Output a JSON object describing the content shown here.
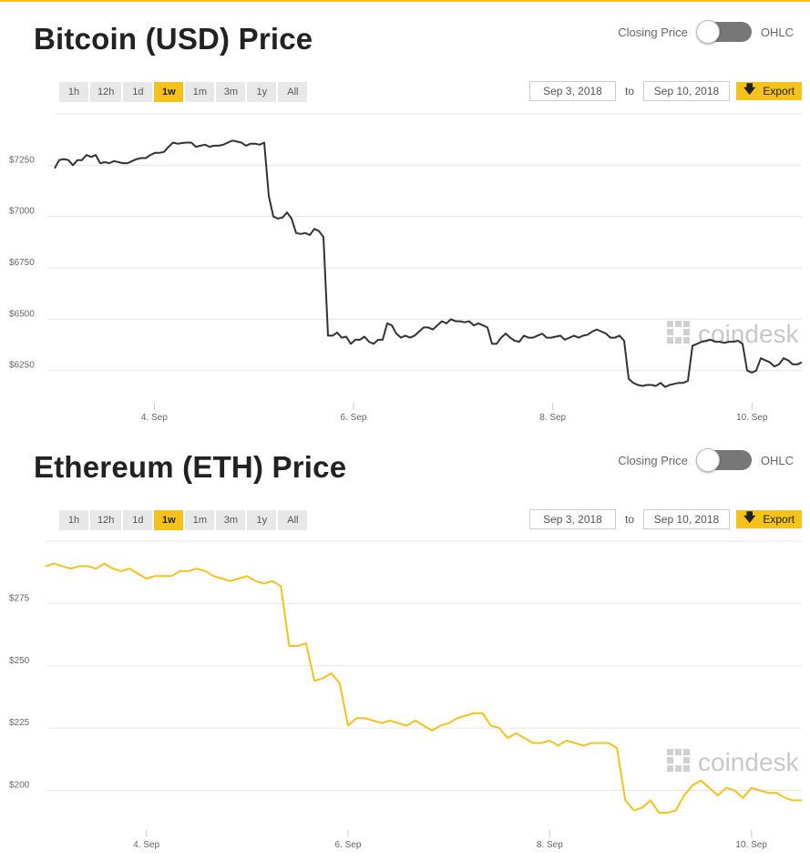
{
  "controls": {
    "closing_label": "Closing Price",
    "ohlc_label": "OHLC",
    "ranges": [
      "1h",
      "12h",
      "1d",
      "1w",
      "1m",
      "3m",
      "1y",
      "All"
    ],
    "active_range": "1w",
    "date_from": "Sep 3, 2018",
    "to_label": "to",
    "date_to": "Sep 10, 2018",
    "export_label": "Export"
  },
  "watermark": "coindesk",
  "colors": {
    "accent": "#f5c11b",
    "btc_line": "#333333",
    "eth_line": "#f5c11b",
    "grid": "#e6e6e6"
  },
  "chart_data": [
    {
      "type": "line",
      "title": "Bitcoin (USD) Price",
      "x_ticks": [
        "4. Sep",
        "6. Sep",
        "8. Sep",
        "10. Sep"
      ],
      "y_ticks": [
        "$6250",
        "$6500",
        "$6750",
        "$7000",
        "$7250"
      ],
      "y_tick_values": [
        6250,
        6500,
        6750,
        7000,
        7250
      ],
      "x_unit": "days since Sep 3, 2018 00:00",
      "xlim": [
        3.0,
        10.5
      ],
      "ylim": [
        6080,
        7500
      ],
      "grid": true,
      "series": [
        {
          "values": [
            7235,
            7275,
            7280,
            7275,
            7250,
            7275,
            7275,
            7300,
            7290,
            7300,
            7260,
            7265,
            7260,
            7270,
            7265,
            7260,
            7260,
            7270,
            7280,
            7285,
            7285,
            7300,
            7310,
            7310,
            7315,
            7340,
            7360,
            7355,
            7358,
            7360,
            7360,
            7340,
            7345,
            7350,
            7340,
            7345,
            7345,
            7350,
            7360,
            7370,
            7365,
            7360,
            7345,
            7355,
            7355,
            7350,
            7360,
            7100,
            7000,
            6990,
            6995,
            7020,
            6990,
            6920,
            6915,
            6920,
            6910,
            6940,
            6930,
            6900,
            6420,
            6420,
            6435,
            6410,
            6415,
            6380,
            6400,
            6400,
            6415,
            6390,
            6380,
            6400,
            6400,
            6480,
            6470,
            6430,
            6410,
            6420,
            6410,
            6420,
            6440,
            6460,
            6460,
            6450,
            6470,
            6490,
            6480,
            6500,
            6490,
            6490,
            6485,
            6490,
            6470,
            6480,
            6470,
            6460,
            6380,
            6380,
            6410,
            6430,
            6410,
            6395,
            6390,
            6420,
            6410,
            6410,
            6420,
            6430,
            6410,
            6410,
            6415,
            6420,
            6400,
            6410,
            6420,
            6410,
            6420,
            6425,
            6440,
            6450,
            6440,
            6430,
            6410,
            6410,
            6420,
            6395,
            6210,
            6190,
            6180,
            6175,
            6180,
            6180,
            6175,
            6190,
            6170,
            6180,
            6185,
            6190,
            6190,
            6200,
            6370,
            6380,
            6390,
            6395,
            6400,
            6390,
            6390,
            6385,
            6390,
            6390,
            6395,
            6380,
            6250,
            6240,
            6250,
            6310,
            6300,
            6290,
            6270,
            6280,
            6310,
            6300,
            6280,
            6280,
            6290
          ],
          "x_start": 3.0,
          "x_end": 10.5
        }
      ]
    },
    {
      "type": "line",
      "title": "Ethereum (ETH) Price",
      "x_ticks": [
        "4. Sep",
        "6. Sep",
        "8. Sep",
        "10. Sep"
      ],
      "y_ticks": [
        "$200",
        "$225",
        "$250",
        "$275"
      ],
      "y_tick_values": [
        200,
        225,
        250,
        275
      ],
      "x_unit": "days since Sep 3, 2018 00:00",
      "xlim": [
        3.0,
        10.5
      ],
      "ylim": [
        183,
        300
      ],
      "grid": true,
      "series": [
        {
          "values": [
            290,
            291,
            290,
            289,
            290,
            290,
            289,
            291,
            289,
            288,
            289,
            287,
            285,
            286,
            286,
            286,
            288,
            288,
            289,
            288,
            286,
            285,
            284,
            285,
            286,
            284,
            283,
            284,
            282,
            258,
            258,
            259,
            244,
            245,
            247,
            243,
            226,
            229,
            229,
            228,
            227,
            228,
            227,
            226,
            228,
            226,
            224,
            226,
            227,
            229,
            230,
            231,
            231,
            226,
            225,
            221,
            223,
            221,
            219,
            219,
            220,
            218,
            220,
            219,
            218,
            219,
            219,
            219,
            217,
            196,
            192,
            193,
            196,
            191,
            191,
            192,
            198,
            202,
            204,
            201,
            198,
            201,
            200,
            197,
            201,
            200,
            199,
            199,
            197,
            196,
            196
          ],
          "x_start": 3.0,
          "x_end": 10.5
        }
      ]
    }
  ]
}
